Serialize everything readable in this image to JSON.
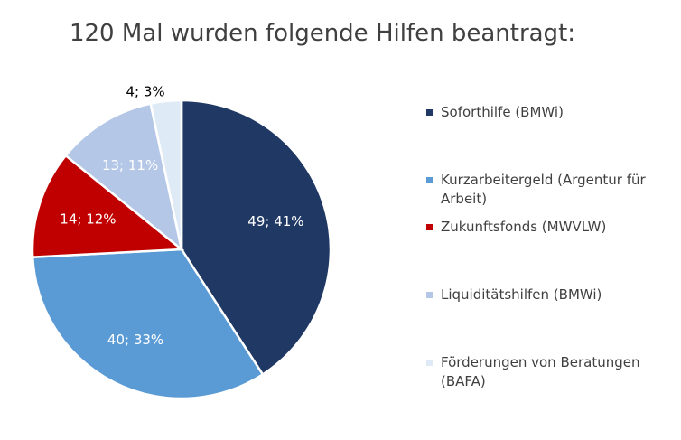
{
  "chart_data": {
    "type": "pie",
    "title": "120 Mal wurden folgende Hilfen beantragt:",
    "start": "top",
    "direction": "clockwise",
    "legend_position": "right",
    "slices": [
      {
        "name": "Soforthilfe (BMWi)",
        "value": 49,
        "percent": 41,
        "label": "49; 41%",
        "color": "#203864",
        "label_color": "#ffffff"
      },
      {
        "name": "Kurzarbeitergeld (Argentur für Arbeit)",
        "value": 40,
        "percent": 33,
        "label": "40; 33%",
        "color": "#5b9bd5",
        "label_color": "#ffffff"
      },
      {
        "name": "Zukunftsfonds (MWVLW)",
        "value": 14,
        "percent": 12,
        "label": "14; 12%",
        "color": "#c00000",
        "label_color": "#ffffff"
      },
      {
        "name": "Liquiditätshilfen (BMWi)",
        "value": 13,
        "percent": 11,
        "label": "13; 11%",
        "color": "#b4c7e7",
        "label_color": "#ffffff"
      },
      {
        "name": "Förderungen von Beratungen (BAFA)",
        "value": 4,
        "percent": 3,
        "label": "4; 3%",
        "color": "#deebf7",
        "label_color": "#000000"
      }
    ]
  }
}
